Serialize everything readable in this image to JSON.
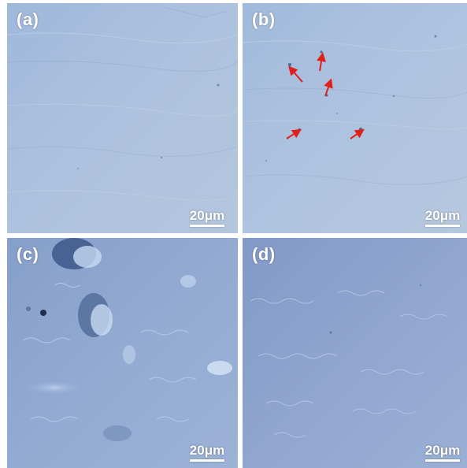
{
  "panels": [
    {
      "label": "(a)",
      "scale_text": "20μm"
    },
    {
      "label": "(b)",
      "scale_text": "20μm"
    },
    {
      "label": "(c)",
      "scale_text": "20μm"
    },
    {
      "label": "(d)",
      "scale_text": "20μm"
    }
  ],
  "colors": {
    "panel_a": "#a8bfdd",
    "panel_b": "#a9c0de",
    "panel_c": "#8ea7cf",
    "panel_d": "#8fa4cf",
    "arrow": "#e0201c",
    "text": "#ffffff"
  }
}
